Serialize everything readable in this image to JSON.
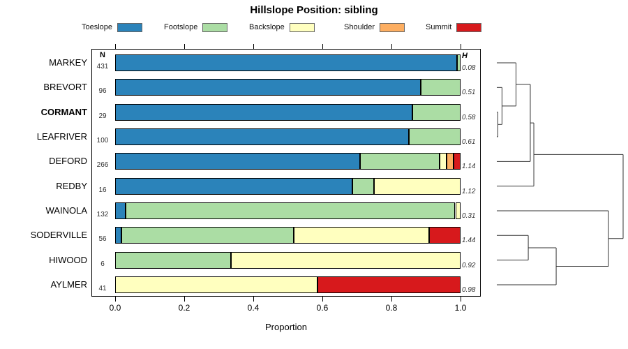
{
  "title": "Hillslope Position: sibling",
  "columns": {
    "n_header": "N",
    "h_header": "H"
  },
  "axis": {
    "label": "Proportion",
    "ticks": [
      "0.0",
      "0.2",
      "0.4",
      "0.6",
      "0.8",
      "1.0"
    ]
  },
  "legend": [
    {
      "label": "Toeslope",
      "color": "#2b83ba"
    },
    {
      "label": "Footslope",
      "color": "#abdda4"
    },
    {
      "label": "Backslope",
      "color": "#ffffbf"
    },
    {
      "label": "Shoulder",
      "color": "#fdae61"
    },
    {
      "label": "Summit",
      "color": "#d7191c"
    }
  ],
  "chart_data": {
    "type": "bar",
    "orientation": "horizontal",
    "stacked": true,
    "title": "Hillslope Position: sibling",
    "xlabel": "Proportion",
    "xlim": [
      0,
      1
    ],
    "categories": [
      "Toeslope",
      "Footslope",
      "Backslope",
      "Shoulder",
      "Summit"
    ],
    "colors": {
      "Toeslope": "#2b83ba",
      "Footslope": "#abdda4",
      "Backslope": "#ffffbf",
      "Shoulder": "#fdae61",
      "Summit": "#d7191c"
    },
    "rows": [
      {
        "name": "MARKEY",
        "n": "431",
        "h": "0.08",
        "bold": false,
        "segments": [
          {
            "cat": "Toeslope",
            "v": 0.99
          },
          {
            "cat": "Footslope",
            "v": 0.01
          }
        ]
      },
      {
        "name": "BREVORT",
        "n": "96",
        "h": "0.51",
        "bold": false,
        "segments": [
          {
            "cat": "Toeslope",
            "v": 0.885
          },
          {
            "cat": "Footslope",
            "v": 0.115
          }
        ]
      },
      {
        "name": "CORMANT",
        "n": "29",
        "h": "0.58",
        "bold": true,
        "segments": [
          {
            "cat": "Toeslope",
            "v": 0.86
          },
          {
            "cat": "Footslope",
            "v": 0.14
          }
        ]
      },
      {
        "name": "LEAFRIVER",
        "n": "100",
        "h": "0.61",
        "bold": false,
        "segments": [
          {
            "cat": "Toeslope",
            "v": 0.85
          },
          {
            "cat": "Footslope",
            "v": 0.15
          }
        ]
      },
      {
        "name": "DEFORD",
        "n": "266",
        "h": "1.14",
        "bold": false,
        "segments": [
          {
            "cat": "Toeslope",
            "v": 0.71
          },
          {
            "cat": "Footslope",
            "v": 0.23
          },
          {
            "cat": "Backslope",
            "v": 0.02
          },
          {
            "cat": "Shoulder",
            "v": 0.02
          },
          {
            "cat": "Summit",
            "v": 0.02
          }
        ]
      },
      {
        "name": "REDBY",
        "n": "16",
        "h": "1.12",
        "bold": false,
        "segments": [
          {
            "cat": "Toeslope",
            "v": 0.6875
          },
          {
            "cat": "Footslope",
            "v": 0.0625
          },
          {
            "cat": "Backslope",
            "v": 0.25
          }
        ]
      },
      {
        "name": "WAINOLA",
        "n": "132",
        "h": "0.31",
        "bold": false,
        "segments": [
          {
            "cat": "Toeslope",
            "v": 0.03
          },
          {
            "cat": "Footslope",
            "v": 0.955
          },
          {
            "cat": "Backslope",
            "v": 0.015
          }
        ]
      },
      {
        "name": "SODERVILLE",
        "n": "56",
        "h": "1.44",
        "bold": false,
        "segments": [
          {
            "cat": "Toeslope",
            "v": 0.018
          },
          {
            "cat": "Footslope",
            "v": 0.5
          },
          {
            "cat": "Backslope",
            "v": 0.392
          },
          {
            "cat": "Summit",
            "v": 0.09
          }
        ]
      },
      {
        "name": "HIWOOD",
        "n": "6",
        "h": "0.92",
        "bold": false,
        "segments": [
          {
            "cat": "Footslope",
            "v": 0.335
          },
          {
            "cat": "Backslope",
            "v": 0.665
          }
        ]
      },
      {
        "name": "AYLMER",
        "n": "41",
        "h": "0.98",
        "bold": false,
        "segments": [
          {
            "cat": "Backslope",
            "v": 0.585
          },
          {
            "cat": "Summit",
            "v": 0.415
          }
        ]
      }
    ],
    "dendrogram": {
      "leaf_order": [
        "MARKEY",
        "BREVORT",
        "CORMANT",
        "LEAFRIVER",
        "DEFORD",
        "REDBY",
        "WAINOLA",
        "SODERVILLE",
        "HIWOOD",
        "AYLMER"
      ],
      "merges": [
        {
          "a": "CORMANT",
          "b": "LEAFRIVER",
          "h": 0.008
        },
        {
          "a": "BREVORT",
          "b": "@0",
          "h": 0.041
        },
        {
          "a": "MARKEY",
          "b": "@1",
          "h": 0.152
        },
        {
          "a": "@2",
          "b": "DEFORD",
          "h": 0.265
        },
        {
          "a": "@3",
          "b": "REDBY",
          "h": 0.293
        },
        {
          "a": "SODERVILLE",
          "b": "HIWOOD",
          "h": 0.249
        },
        {
          "a": "@5",
          "b": "AYLMER",
          "h": 0.47
        },
        {
          "a": "WAINOLA",
          "b": "@6",
          "h": 0.884
        },
        {
          "a": "@4",
          "b": "@7",
          "h": 1.0
        }
      ]
    }
  }
}
